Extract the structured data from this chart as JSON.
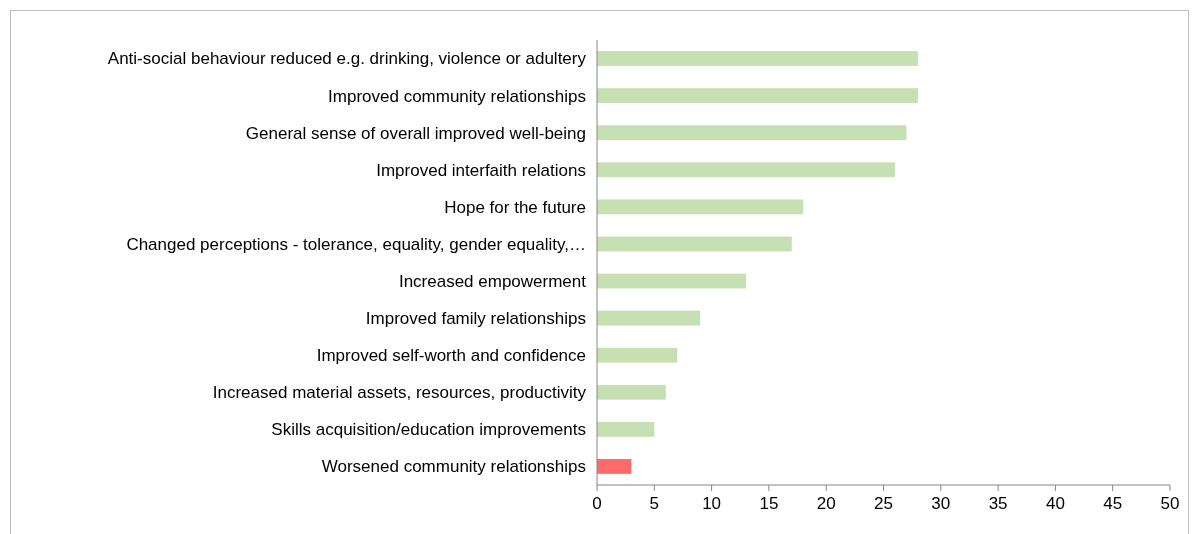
{
  "chart_data": {
    "type": "bar",
    "orientation": "horizontal",
    "categories": [
      "Anti-social behaviour reduced e.g. drinking, violence or adultery",
      "Improved community relationships",
      "General sense of overall improved well-being",
      "Improved interfaith relations",
      "Hope for the future",
      "Changed perceptions - tolerance, equality, gender equality,…",
      "Increased empowerment",
      "Improved family relationships",
      "Improved self-worth and confidence",
      "Increased material assets, resources, productivity",
      "Skills acquisition/education improvements",
      "Worsened community relationships"
    ],
    "values": [
      28,
      28,
      27,
      26,
      18,
      17,
      13,
      9,
      7,
      6,
      5,
      3
    ],
    "colors": [
      "#c6e0b4",
      "#c6e0b4",
      "#c6e0b4",
      "#c6e0b4",
      "#c6e0b4",
      "#c6e0b4",
      "#c6e0b4",
      "#c6e0b4",
      "#c6e0b4",
      "#c6e0b4",
      "#c6e0b4",
      "#ff6b6b"
    ],
    "xlim": [
      0,
      50
    ],
    "xticks": [
      0,
      5,
      10,
      15,
      20,
      25,
      30,
      35,
      40,
      45,
      50
    ],
    "grid": false
  }
}
